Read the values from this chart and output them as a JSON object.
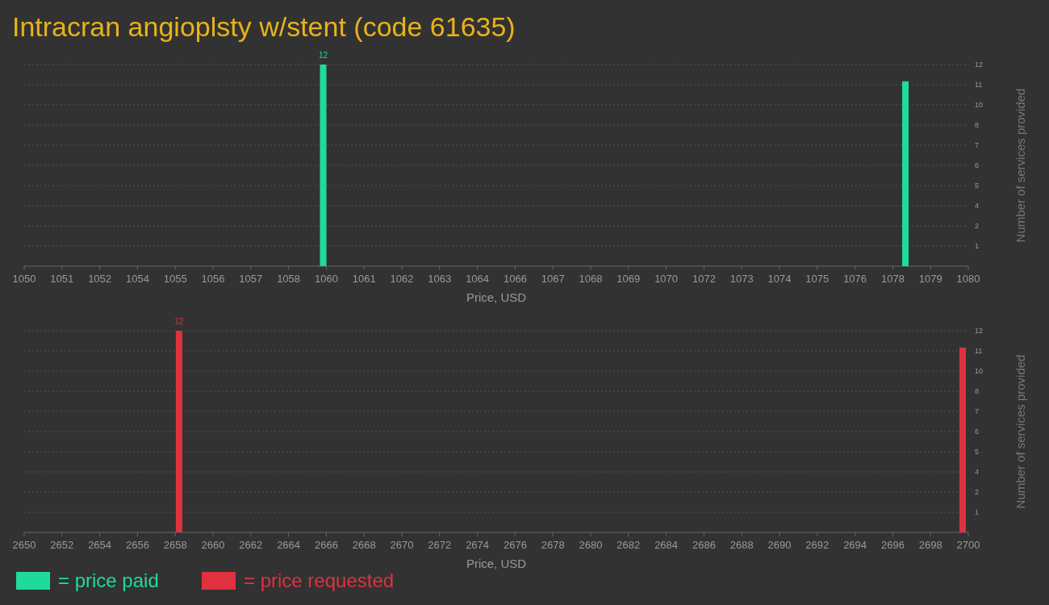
{
  "chart_data": [
    {
      "type": "bar",
      "title": "Intracran angioplsty w/stent (code 61635)",
      "xlabel": "Price, USD",
      "ylabel": "Number of services provided",
      "x": [
        1059.5,
        1078
      ],
      "series": [
        {
          "name": "= price paid",
          "color": "#1fdb9b",
          "values": [
            12,
            11
          ],
          "value_labels": [
            "12",
            null
          ]
        }
      ],
      "yticks": [
        {
          "value": 1.2,
          "label": "1"
        },
        {
          "value": 2.4,
          "label": "2"
        },
        {
          "value": 3.6,
          "label": "4"
        },
        {
          "value": 4.8,
          "label": "5"
        },
        {
          "value": 6,
          "label": "6"
        },
        {
          "value": 7.2,
          "label": "7"
        },
        {
          "value": 8.4,
          "label": "8"
        },
        {
          "value": 9.6,
          "label": "10"
        },
        {
          "value": 10.8,
          "label": "11"
        },
        {
          "value": 12,
          "label": "12"
        }
      ],
      "xlim": [
        1050,
        1080
      ],
      "xticks": [
        1050,
        {
          "value": 1051.2,
          "label": "1051"
        },
        {
          "value": 1052.4,
          "label": "1052"
        },
        {
          "value": 1053.6,
          "label": "1054"
        },
        {
          "value": 1054.8,
          "label": "1055"
        },
        1056,
        {
          "value": 1057.2,
          "label": "1057"
        },
        {
          "value": 1058.4,
          "label": "1058"
        },
        {
          "value": 1059.6,
          "label": "1060"
        },
        {
          "value": 1060.8,
          "label": "1061"
        },
        1062,
        {
          "value": 1063.2,
          "label": "1063"
        },
        {
          "value": 1064.4,
          "label": "1064"
        },
        {
          "value": 1065.6,
          "label": "1066"
        },
        {
          "value": 1066.8,
          "label": "1067"
        },
        1068,
        {
          "value": 1069.2,
          "label": "1069"
        },
        {
          "value": 1070.4,
          "label": "1070"
        },
        {
          "value": 1071.6,
          "label": "1072"
        },
        {
          "value": 1072.8,
          "label": "1073"
        },
        1074,
        {
          "value": 1075.2,
          "label": "1075"
        },
        {
          "value": 1076.4,
          "label": "1076"
        },
        {
          "value": 1077.6,
          "label": "1078"
        },
        {
          "value": 1078.8,
          "label": "1079"
        },
        1080
      ],
      "ylim": [
        0,
        12
      ],
      "grid": "y",
      "legend": "bottom"
    },
    {
      "type": "bar",
      "xlabel": "Price, USD",
      "ylabel": "Number of services provided",
      "x": [
        2658.2,
        2699.7
      ],
      "series": [
        {
          "name": "= price requested",
          "color": "#e0313f",
          "values": [
            12,
            11
          ],
          "value_labels": [
            "12",
            null
          ]
        }
      ],
      "xlim": [
        2650,
        2700
      ],
      "xticks": [
        2650,
        2652,
        2654,
        2656,
        2658,
        2660,
        2662,
        2664,
        2666,
        2668,
        2670,
        2672,
        2674,
        2676,
        2678,
        2680,
        2682,
        2684,
        2686,
        2688,
        2690,
        2692,
        2694,
        2696,
        2698,
        2700
      ],
      "ylim": [
        0,
        12
      ],
      "yticks": [
        {
          "value": 1.2,
          "label": "1"
        },
        {
          "value": 2.4,
          "label": "2"
        },
        {
          "value": 3.6,
          "label": "4"
        },
        {
          "value": 4.8,
          "label": "5"
        },
        {
          "value": 6,
          "label": "6"
        },
        {
          "value": 7.2,
          "label": "7"
        },
        {
          "value": 8.4,
          "label": "8"
        },
        {
          "value": 9.6,
          "label": "10"
        },
        {
          "value": 10.8,
          "label": "11"
        },
        {
          "value": 12,
          "label": "12"
        }
      ],
      "grid": "y",
      "legend": "bottom"
    }
  ]
}
